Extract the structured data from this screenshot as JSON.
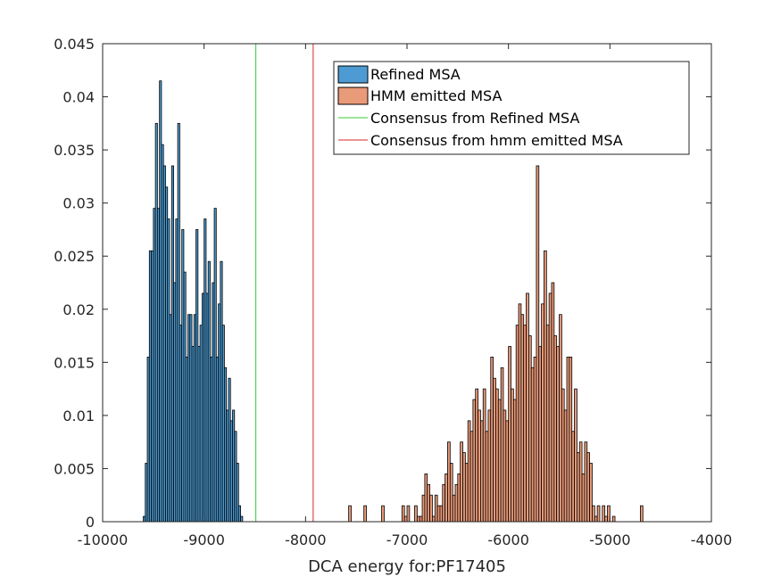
{
  "chart_data": {
    "type": "bar",
    "title": "",
    "xlabel": "DCA energy for:PF17405",
    "ylabel": "",
    "xlim": [
      -10000,
      -4000
    ],
    "ylim": [
      0,
      0.045
    ],
    "grid": false,
    "legend_position": "top-right",
    "x_ticks": [
      "-10000",
      "-9000",
      "-8000",
      "-7000",
      "-6000",
      "-5000",
      "-4000"
    ],
    "y_ticks": [
      "0",
      "0.005",
      "0.01",
      "0.015",
      "0.02",
      "0.025",
      "0.03",
      "0.035",
      "0.04",
      "0.045"
    ],
    "series": [
      {
        "name": "Refined MSA",
        "kind": "histogram",
        "color": "#4D9BD2",
        "bin_start": -9600,
        "bin_width": 20,
        "values": [
          0.0005,
          0.0055,
          0.0155,
          0.0255,
          0.0255,
          0.0295,
          0.0375,
          0.0295,
          0.0415,
          0.0355,
          0.0335,
          0.0315,
          0.0285,
          0.0195,
          0.0335,
          0.0225,
          0.0285,
          0.0375,
          0.0185,
          0.0275,
          0.0235,
          0.0155,
          0.0195,
          0.0195,
          0.0165,
          0.0195,
          0.0275,
          0.0165,
          0.0185,
          0.0215,
          0.0285,
          0.0215,
          0.0245,
          0.0155,
          0.0225,
          0.0295,
          0.0155,
          0.0205,
          0.0245,
          0.0185,
          0.0145,
          0.0105,
          0.0135,
          0.0095,
          0.0105,
          0.0085,
          0.0055,
          0.0015,
          0.0005
        ]
      },
      {
        "name": "HMM emitted MSA",
        "kind": "histogram",
        "color": "#E99A79",
        "bin_start": -7575,
        "bin_width": 25,
        "values": [
          0.0015,
          0,
          0,
          0,
          0,
          0,
          0.0015,
          0,
          0,
          0,
          0,
          0,
          0,
          0.0015,
          0,
          0,
          0,
          0,
          0,
          0,
          0,
          0.0015,
          0.0005,
          0.0015,
          0,
          0,
          0.0015,
          0.0005,
          0.0005,
          0.0025,
          0.0045,
          0.0035,
          0.0025,
          0.0005,
          0.0025,
          0.0015,
          0.0015,
          0.0035,
          0.0045,
          0.0075,
          0.0055,
          0.0025,
          0.0035,
          0.0045,
          0.0075,
          0.0065,
          0.0055,
          0.0095,
          0.0085,
          0.0115,
          0.0125,
          0.0105,
          0.0095,
          0.0125,
          0.0085,
          0.0105,
          0.0155,
          0.0135,
          0.0125,
          0.0115,
          0.0145,
          0.0105,
          0.0095,
          0.0165,
          0.0125,
          0.0115,
          0.0185,
          0.0205,
          0.0195,
          0.0185,
          0.0215,
          0.0175,
          0.0145,
          0.0155,
          0.0335,
          0.0165,
          0.0205,
          0.0255,
          0.0185,
          0.0215,
          0.0225,
          0.0175,
          0.0165,
          0.0195,
          0.0125,
          0.0105,
          0.0155,
          0.0155,
          0.0085,
          0.0125,
          0.0065,
          0.0075,
          0.0045,
          0.0075,
          0.0065,
          0.0055,
          0.0015,
          0.0005,
          0.0015,
          0,
          0.0015,
          0.0005,
          0.0015,
          0,
          0.0005,
          0,
          0,
          0,
          0,
          0,
          0,
          0,
          0,
          0,
          0,
          0.0015
        ]
      }
    ],
    "reference_lines": [
      {
        "name": "Consensus from Refined MSA",
        "x": -8490,
        "color": "#33CC33"
      },
      {
        "name": "Consensus from hmm emitted MSA",
        "x": -7925,
        "color": "#D9292B"
      }
    ]
  }
}
